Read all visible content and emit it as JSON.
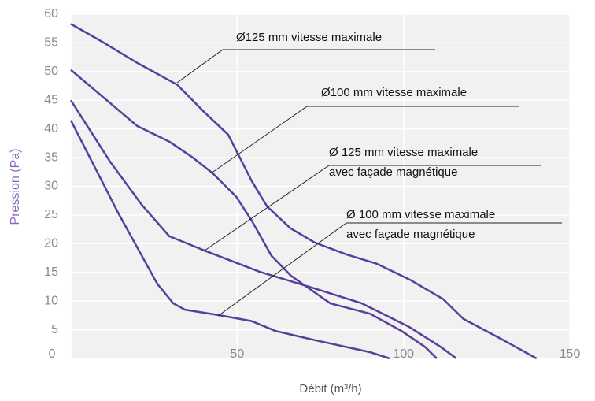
{
  "chart_data": {
    "type": "line",
    "xlabel": "Débit (m³/h)",
    "ylabel": "Pression (Pa)",
    "xlim": [
      0,
      150
    ],
    "xticks": [
      0,
      50,
      100,
      150
    ],
    "ylim": [
      0,
      60
    ],
    "yticks": [
      5,
      10,
      15,
      20,
      25,
      30,
      35,
      40,
      45,
      50,
      55,
      60
    ],
    "grid": true,
    "color": "#5a3e9b",
    "series": [
      {
        "label": [
          "Ø125 mm vitesse maximale"
        ],
        "x": [
          0,
          10,
          20,
          32,
          40,
          47.3,
          54.4,
          59,
          66,
          73.3,
          83,
          92,
          102,
          112,
          118,
          130,
          140
        ],
        "values": [
          58.3,
          55,
          51.5,
          47.7,
          43,
          39,
          30.9,
          26.5,
          22.7,
          20.2,
          18.1,
          16.5,
          13.7,
          10.3,
          6.9,
          3.2,
          0
        ]
      },
      {
        "label": [
          "Ø100 mm vitesse maximale"
        ],
        "x": [
          0,
          20,
          29.6,
          36.7,
          42.6,
          49.7,
          54.4,
          60.3,
          66.2,
          78,
          89.9,
          99.4,
          106.5,
          110
        ],
        "values": [
          50.3,
          40.5,
          37.8,
          35,
          32.3,
          28.2,
          24,
          17.9,
          14.4,
          9.6,
          7.8,
          4.8,
          2,
          0
        ]
      },
      {
        "label": [
          "Ø 125 mm vitesse maximale",
          "avec façade magnétique"
        ],
        "x": [
          0,
          11.8,
          21.3,
          29.6,
          40.2,
          56.8,
          73.3,
          87.5,
          101.7,
          111.2,
          115.9
        ],
        "values": [
          45,
          34.3,
          26.8,
          21.3,
          18.8,
          15.1,
          12.2,
          9.6,
          5.5,
          2,
          0
        ]
      },
      {
        "label": [
          "Ø 100 mm vitesse maximale",
          "avec façade magnétique"
        ],
        "x": [
          0,
          14.2,
          26,
          30.8,
          34.3,
          45,
          54.4,
          61.5,
          73.3,
          89.9,
          95.8
        ],
        "values": [
          41.5,
          25.4,
          13,
          9.6,
          8.5,
          7.5,
          6.5,
          4.8,
          3.2,
          1.1,
          0
        ]
      }
    ]
  }
}
